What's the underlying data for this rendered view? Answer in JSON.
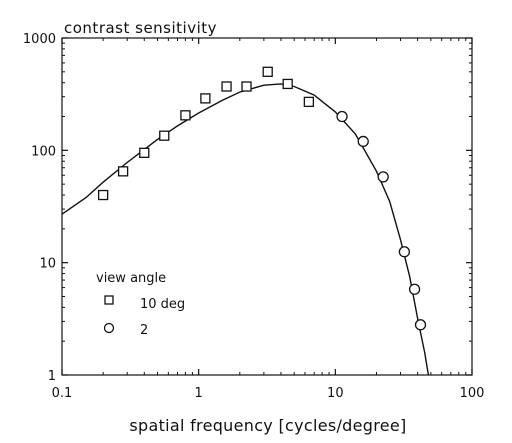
{
  "chart_data": {
    "type": "scatter",
    "title": "",
    "ylabel": "contrast sensitivity",
    "xlabel": "spatial frequency [cycles/degree]",
    "xscale": "log",
    "yscale": "log",
    "xlim": [
      0.1,
      100
    ],
    "ylim": [
      1,
      1000
    ],
    "x_ticks": [
      0.1,
      1,
      10,
      100
    ],
    "x_tick_labels": [
      "0.1",
      "1",
      "10",
      "100"
    ],
    "y_ticks": [
      1,
      10,
      100,
      1000
    ],
    "y_tick_labels": [
      "1",
      "10",
      "100",
      "1000"
    ],
    "grid": false,
    "legend": {
      "title": "view angle",
      "placement": "bottom-left",
      "items": [
        {
          "label": "10 deg",
          "marker": "square"
        },
        {
          "label": "2",
          "marker": "circle"
        }
      ]
    },
    "series": [
      {
        "name": "10 deg",
        "marker": "square",
        "points": [
          {
            "x": 0.2,
            "y": 40
          },
          {
            "x": 0.28,
            "y": 65
          },
          {
            "x": 0.4,
            "y": 95
          },
          {
            "x": 0.56,
            "y": 135
          },
          {
            "x": 0.8,
            "y": 205
          },
          {
            "x": 1.12,
            "y": 290
          },
          {
            "x": 1.6,
            "y": 370
          },
          {
            "x": 2.24,
            "y": 370
          },
          {
            "x": 3.2,
            "y": 500
          },
          {
            "x": 4.48,
            "y": 390
          },
          {
            "x": 6.4,
            "y": 270
          }
        ]
      },
      {
        "name": "2",
        "marker": "circle",
        "points": [
          {
            "x": 11.2,
            "y": 200
          },
          {
            "x": 16,
            "y": 120
          },
          {
            "x": 22.4,
            "y": 58
          },
          {
            "x": 32,
            "y": 12.5
          },
          {
            "x": 38,
            "y": 5.8
          },
          {
            "x": 42,
            "y": 2.8
          }
        ]
      },
      {
        "type": "line",
        "curve": [
          {
            "x": 0.1,
            "y": 27
          },
          {
            "x": 0.15,
            "y": 38
          },
          {
            "x": 0.2,
            "y": 52
          },
          {
            "x": 0.3,
            "y": 78
          },
          {
            "x": 0.5,
            "y": 125
          },
          {
            "x": 0.7,
            "y": 165
          },
          {
            "x": 1,
            "y": 215
          },
          {
            "x": 1.5,
            "y": 280
          },
          {
            "x": 2,
            "y": 330
          },
          {
            "x": 3,
            "y": 380
          },
          {
            "x": 4,
            "y": 390
          },
          {
            "x": 5,
            "y": 370
          },
          {
            "x": 7,
            "y": 310
          },
          {
            "x": 10,
            "y": 220
          },
          {
            "x": 14,
            "y": 140
          },
          {
            "x": 20,
            "y": 65
          },
          {
            "x": 25,
            "y": 35
          },
          {
            "x": 30,
            "y": 16
          },
          {
            "x": 35,
            "y": 7.5
          },
          {
            "x": 40,
            "y": 3.2
          },
          {
            "x": 45,
            "y": 1.6
          },
          {
            "x": 48,
            "y": 1
          }
        ]
      }
    ]
  }
}
